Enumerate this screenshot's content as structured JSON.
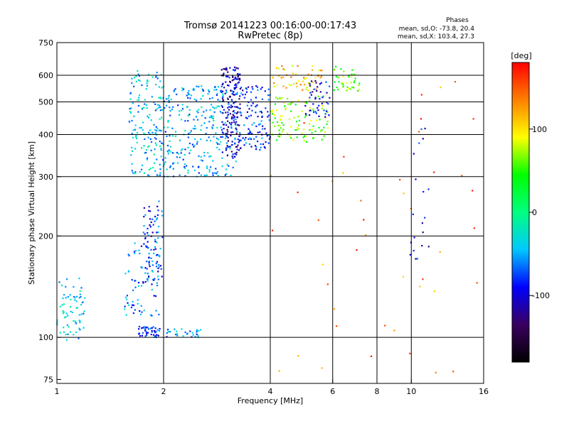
{
  "chart_data": {
    "type": "scatter",
    "title": "Tromsø 20141223 00:16:00-00:17:43",
    "subtitle": "RwPretec (8p)",
    "xlabel": "Frequency [MHz]",
    "ylabel": "Stationary phase Virtual Height [km]",
    "x_scale": "log",
    "y_scale": "log",
    "xlim": [
      1,
      16
    ],
    "ylim": [
      73,
      750
    ],
    "x_ticks": [
      {
        "value": 1,
        "label": "1"
      },
      {
        "value": 2,
        "label": "2"
      },
      {
        "value": 4,
        "label": "4"
      },
      {
        "value": 6,
        "label": "6"
      },
      {
        "value": 8,
        "label": "8"
      },
      {
        "value": 10,
        "label": "10"
      },
      {
        "value": 16,
        "label": "16"
      }
    ],
    "y_ticks": [
      {
        "value": 75,
        "label": "75"
      },
      {
        "value": 100,
        "label": "100"
      },
      {
        "value": 200,
        "label": "200"
      },
      {
        "value": 300,
        "label": "300"
      },
      {
        "value": 400,
        "label": "400"
      },
      {
        "value": 500,
        "label": "500"
      },
      {
        "value": 600,
        "label": "600"
      },
      {
        "value": 750,
        "label": "750"
      }
    ],
    "grid_x": [
      1,
      2,
      4,
      6,
      8,
      10
    ],
    "grid_y": [
      100,
      200,
      300,
      400,
      500,
      600
    ],
    "grid": true,
    "phase_stats": {
      "heading": "Phases",
      "line1": "mean, sd,O: -73.8, 20.4",
      "line2": "mean, sd,X: 103.4, 27.3"
    },
    "colorbar": {
      "title": "[deg]",
      "range": [
        -180,
        180
      ],
      "ticks": [
        {
          "value": 100,
          "label": "100"
        },
        {
          "value": 0,
          "label": "0"
        },
        {
          "value": -100,
          "label": "-100"
        }
      ],
      "colors": [
        "#000000",
        "#3a0060",
        "#0000ff",
        "#00c8ff",
        "#00ff80",
        "#00ff00",
        "#ffff00",
        "#ff8000",
        "#ff0000"
      ]
    },
    "clusters": [
      {
        "f": [
          1.0,
          1.2
        ],
        "h": [
          98,
          150
        ],
        "n": 70,
        "phase": -40
      },
      {
        "f": [
          1.55,
          1.95
        ],
        "h": [
          115,
          195
        ],
        "n": 80,
        "phase": -60
      },
      {
        "f": [
          1.7,
          1.95
        ],
        "h": [
          100,
          108
        ],
        "n": 45,
        "phase": -80
      },
      {
        "f": [
          2.0,
          2.55
        ],
        "h": [
          100,
          106
        ],
        "n": 30,
        "phase": -60
      },
      {
        "f": [
          1.75,
          2.0
        ],
        "h": [
          145,
          260
        ],
        "n": 70,
        "phase": -80
      },
      {
        "f": [
          1.6,
          1.98
        ],
        "h": [
          300,
          620
        ],
        "n": 150,
        "phase": -40
      },
      {
        "f": [
          1.95,
          3.2
        ],
        "h": [
          300,
          560
        ],
        "n": 300,
        "phase": -50
      },
      {
        "f": [
          2.9,
          3.3
        ],
        "h": [
          340,
          640
        ],
        "n": 160,
        "phase": -110
      },
      {
        "f": [
          3.1,
          4.0
        ],
        "h": [
          360,
          560
        ],
        "n": 130,
        "phase": -80
      },
      {
        "f": [
          4.0,
          5.9
        ],
        "h": [
          380,
          520
        ],
        "n": 110,
        "phase": 60
      },
      {
        "f": [
          4.0,
          5.6
        ],
        "h": [
          540,
          640
        ],
        "n": 55,
        "phase": 110
      },
      {
        "f": [
          5.0,
          5.9
        ],
        "h": [
          450,
          580
        ],
        "n": 45,
        "phase": -100
      },
      {
        "f": [
          6.0,
          7.2
        ],
        "h": [
          530,
          640
        ],
        "n": 40,
        "phase": 60
      },
      {
        "f": [
          9.9,
          11.2
        ],
        "h": [
          170,
          420
        ],
        "n": 20,
        "phase": -95
      },
      {
        "f": [
          4.0,
          16.0
        ],
        "h": [
          75,
          640
        ],
        "n": 45,
        "phase": 140
      }
    ],
    "legend": "none"
  }
}
